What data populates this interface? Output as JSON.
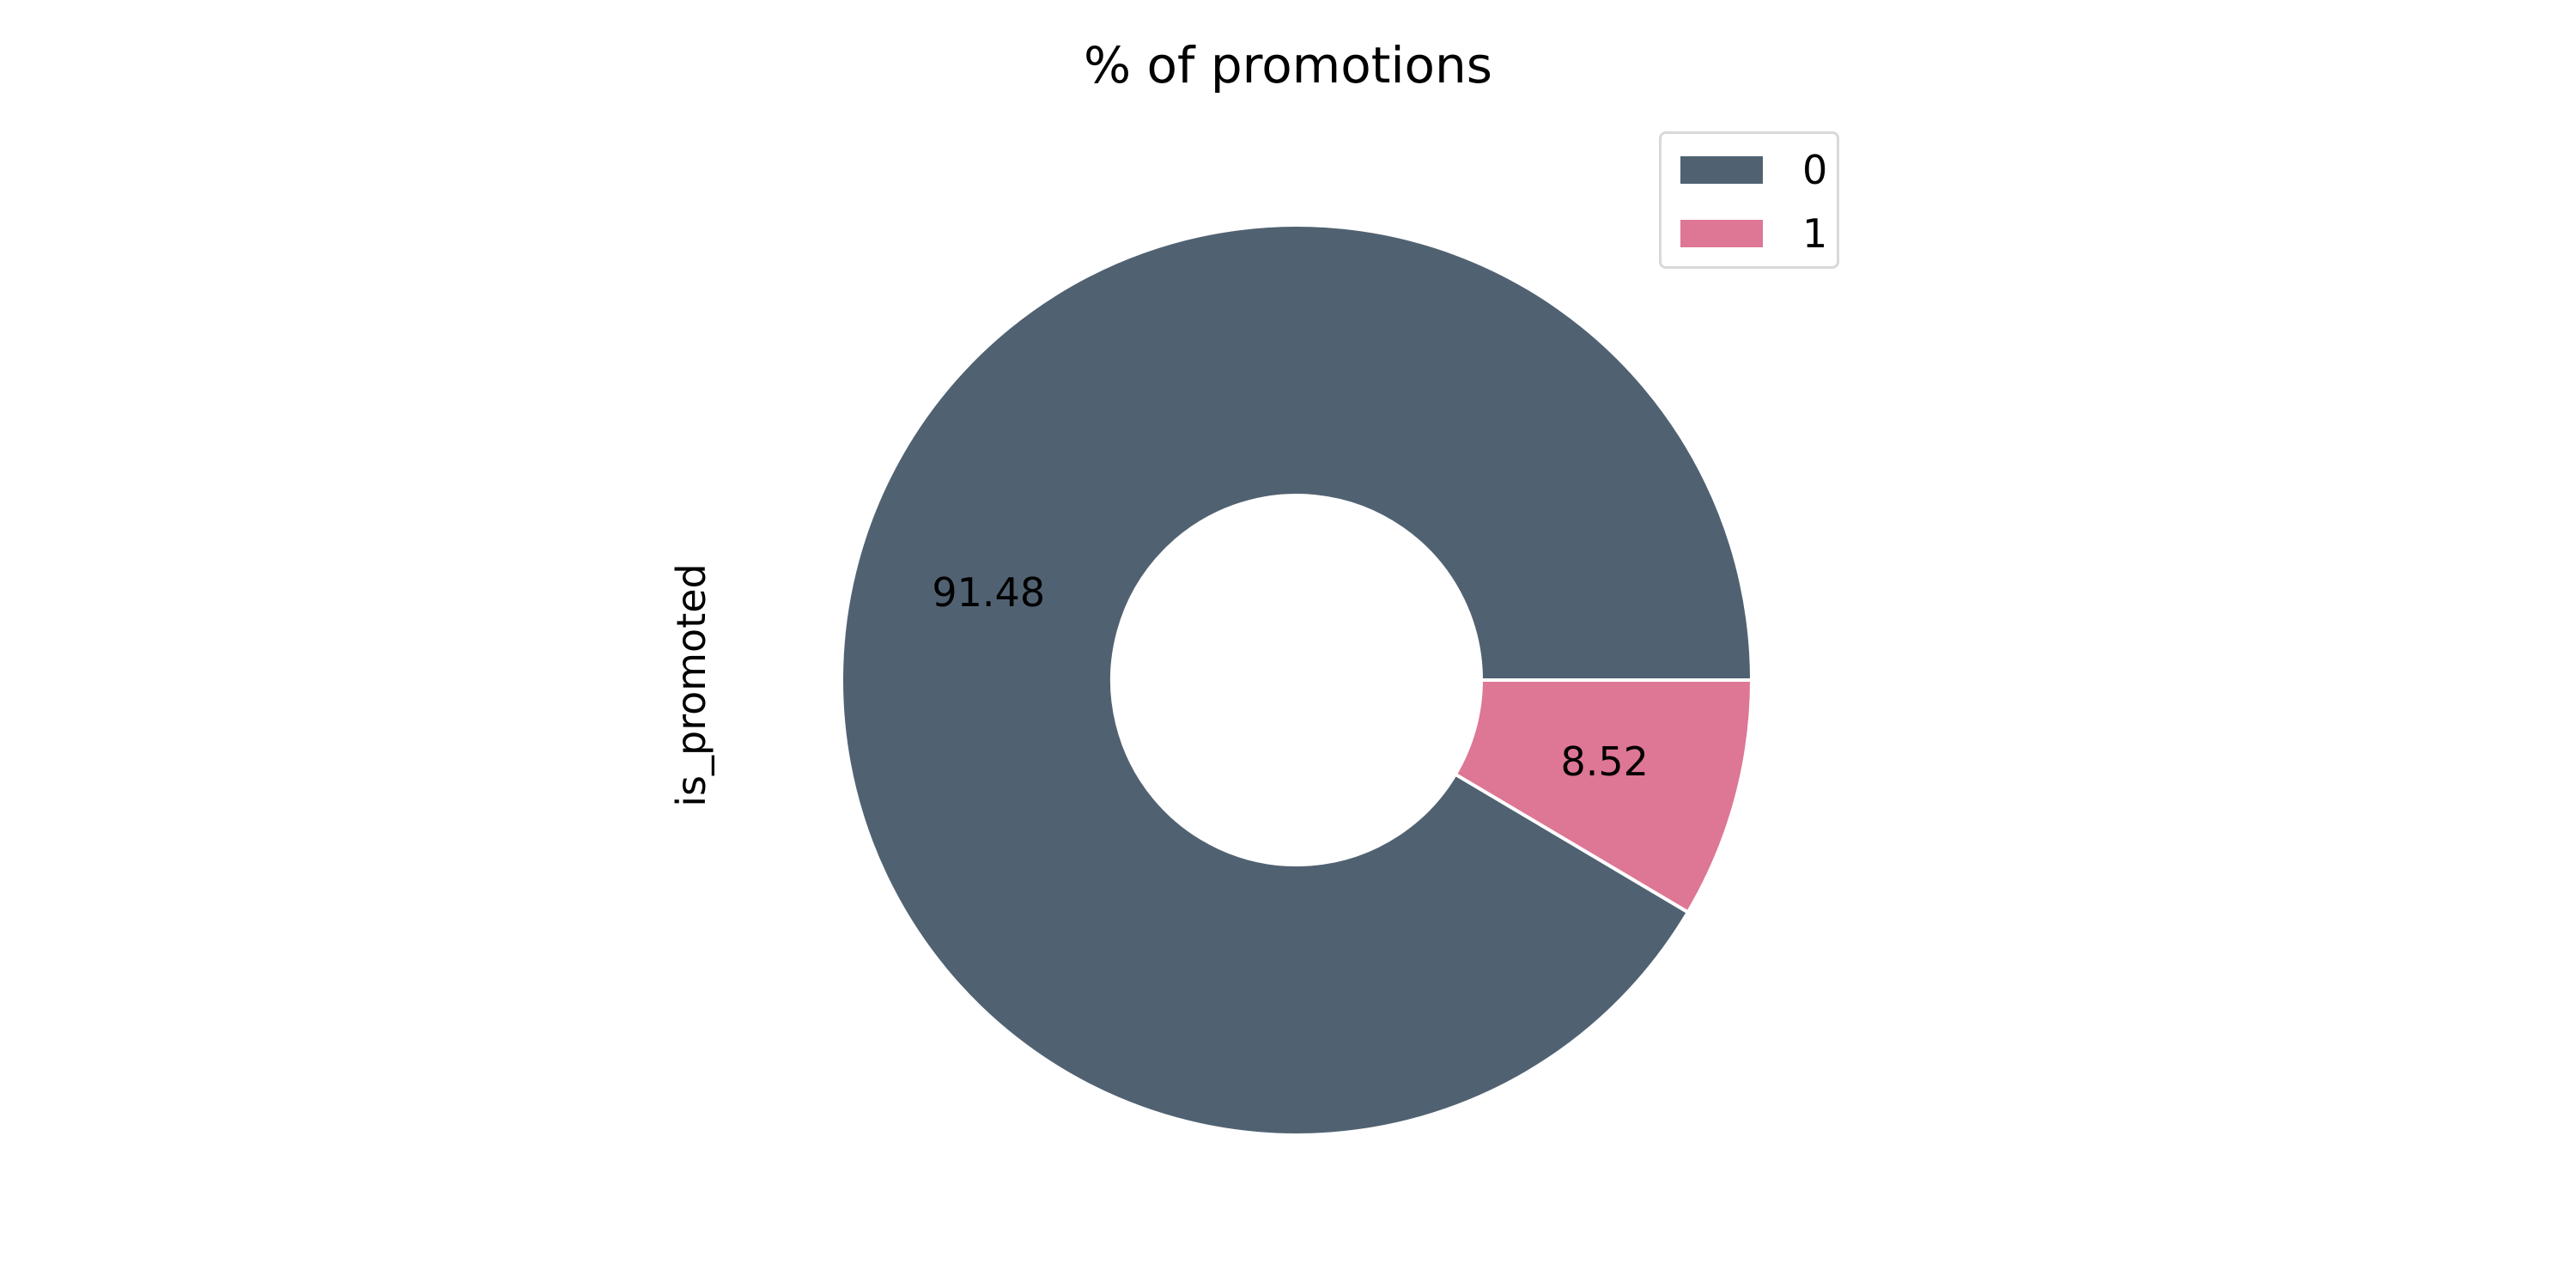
{
  "chart_data": {
    "type": "pie",
    "title": "% of promotions",
    "ylabel": "is_promoted",
    "donut": true,
    "legend_position": "top-right",
    "slices": [
      {
        "label": "0",
        "value": 91.48,
        "value_label": "91.48",
        "color": "#506272"
      },
      {
        "label": "1",
        "value": 8.52,
        "value_label": "8.52",
        "color": "#de7695"
      }
    ]
  }
}
